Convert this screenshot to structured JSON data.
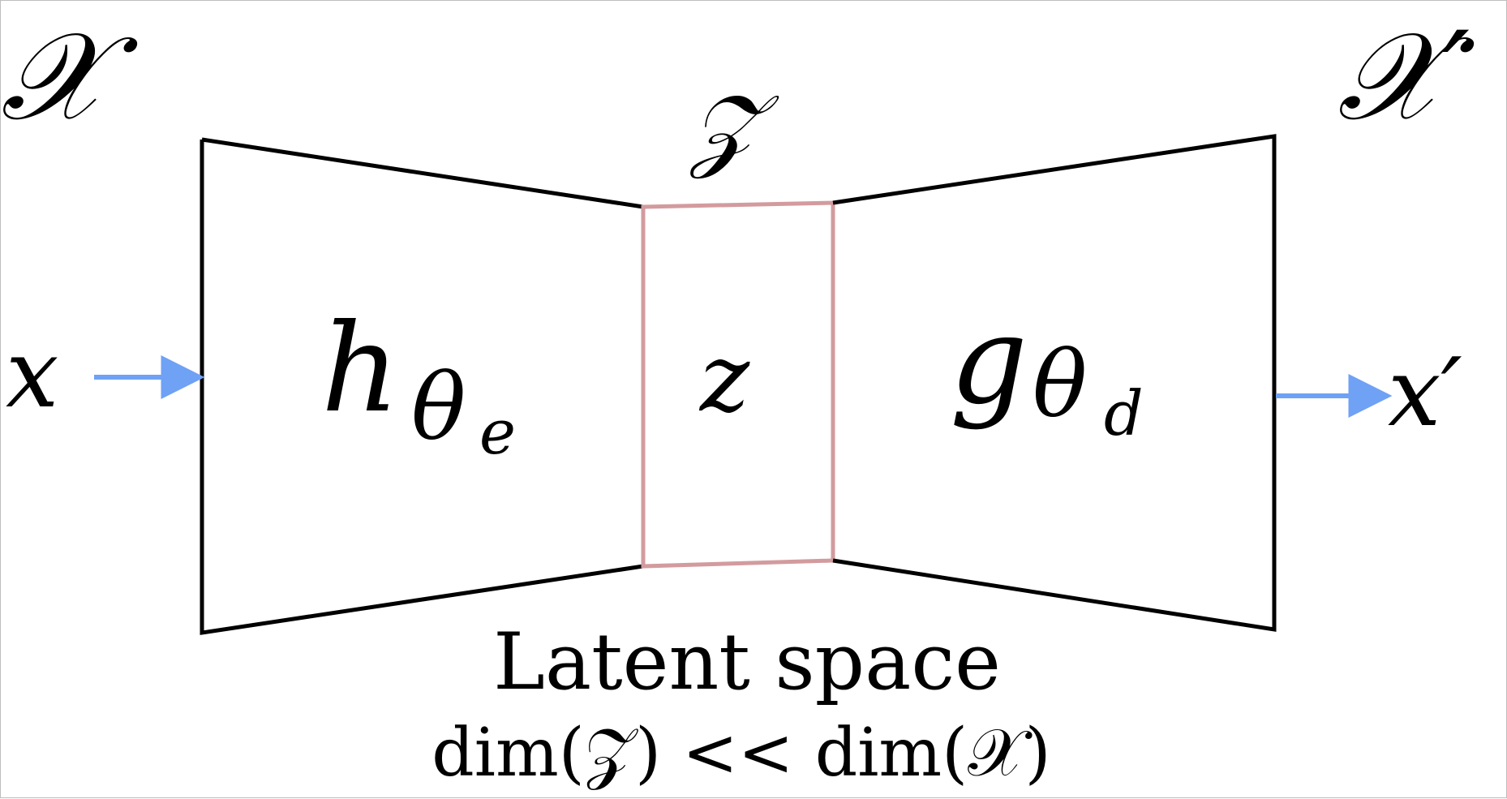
{
  "space_labels": {
    "input_space": "𝒳",
    "latent_space": "𝒵",
    "output_space": "𝒳′"
  },
  "signals": {
    "input": "x",
    "latent": "z",
    "output": "x′"
  },
  "blocks": {
    "encoder": {
      "base": "h",
      "sub": "θ",
      "subsub": "e"
    },
    "decoder": {
      "base": "g",
      "sub": "θ",
      "subsub": "d"
    }
  },
  "caption": {
    "line1": "Latent space",
    "line2": "dim(𝒵) << dim(𝒳)"
  },
  "colors": {
    "outline": "#000000",
    "latent_box": "#d39b9e",
    "arrow": "#6fa1f5"
  }
}
